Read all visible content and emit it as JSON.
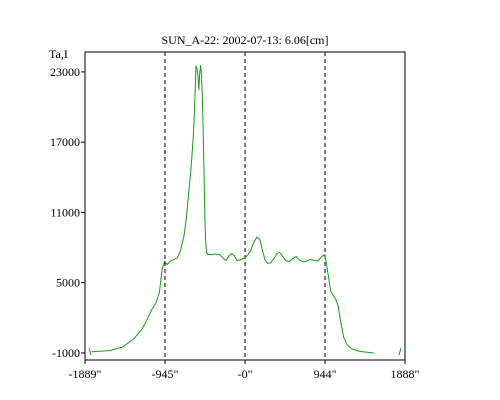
{
  "chart_data": {
    "type": "line",
    "title": "SUN_A-22: 2002-07-13: 6.06[cm]",
    "ylabel": "Ta,I",
    "xlabel": "",
    "xlim": [
      -1889,
      1888
    ],
    "ylim": [
      -1600,
      24700
    ],
    "grid": false,
    "x_ticks": [
      {
        "value": -1889,
        "label": "-1889\""
      },
      {
        "value": -945,
        "label": "-945\""
      },
      {
        "value": 0,
        "label": "-0\""
      },
      {
        "value": 944,
        "label": "944\""
      },
      {
        "value": 1888,
        "label": "1888\""
      }
    ],
    "y_ticks": [
      {
        "value": -1000,
        "label": "-1000"
      },
      {
        "value": 5000,
        "label": "5000"
      },
      {
        "value": 11000,
        "label": "11000"
      },
      {
        "value": 17000,
        "label": "17000"
      },
      {
        "value": 23000,
        "label": "23000"
      }
    ],
    "reference_lines_x": [
      -945,
      0,
      944
    ],
    "colors": {
      "series": "#1a9a1a",
      "axes": "#000000",
      "reference": "#000000"
    },
    "series": [
      {
        "points": [
          [
            -1810,
            -900
          ],
          [
            -1600,
            -800
          ],
          [
            -1450,
            -500
          ],
          [
            -1320,
            150
          ],
          [
            -1220,
            1000
          ],
          [
            -1160,
            1800
          ],
          [
            -1100,
            2700
          ],
          [
            -1050,
            3300
          ],
          [
            -1010,
            4200
          ],
          [
            -980,
            6100
          ],
          [
            -950,
            6850
          ],
          [
            -920,
            6550
          ],
          [
            -880,
            6850
          ],
          [
            -850,
            6950
          ],
          [
            -800,
            7100
          ],
          [
            -760,
            7800
          ],
          [
            -720,
            9000
          ],
          [
            -690,
            10700
          ],
          [
            -665,
            12700
          ],
          [
            -640,
            14500
          ],
          [
            -620,
            16500
          ],
          [
            -605,
            18300
          ],
          [
            -592,
            20800
          ],
          [
            -580,
            23500
          ],
          [
            -568,
            23300
          ],
          [
            -555,
            22600
          ],
          [
            -545,
            21500
          ],
          [
            -535,
            22900
          ],
          [
            -525,
            23550
          ],
          [
            -515,
            22800
          ],
          [
            -505,
            21000
          ],
          [
            -495,
            18200
          ],
          [
            -485,
            14500
          ],
          [
            -475,
            10800
          ],
          [
            -465,
            8600
          ],
          [
            -455,
            7600
          ],
          [
            -440,
            7400
          ],
          [
            -400,
            7400
          ],
          [
            -350,
            7450
          ],
          [
            -300,
            7400
          ],
          [
            -260,
            7100
          ],
          [
            -225,
            6900
          ],
          [
            -190,
            7300
          ],
          [
            -160,
            7500
          ],
          [
            -130,
            7350
          ],
          [
            -95,
            6900
          ],
          [
            -60,
            6950
          ],
          [
            -30,
            7050
          ],
          [
            0,
            7150
          ],
          [
            30,
            7350
          ],
          [
            65,
            7700
          ],
          [
            100,
            8400
          ],
          [
            140,
            8900
          ],
          [
            175,
            8700
          ],
          [
            205,
            7800
          ],
          [
            235,
            6950
          ],
          [
            265,
            6650
          ],
          [
            300,
            6700
          ],
          [
            340,
            7050
          ],
          [
            380,
            7500
          ],
          [
            410,
            7600
          ],
          [
            440,
            7300
          ],
          [
            480,
            6900
          ],
          [
            520,
            6800
          ],
          [
            560,
            7050
          ],
          [
            600,
            7250
          ],
          [
            640,
            6950
          ],
          [
            680,
            6800
          ],
          [
            720,
            6800
          ],
          [
            770,
            7000
          ],
          [
            820,
            6900
          ],
          [
            860,
            6850
          ],
          [
            900,
            7200
          ],
          [
            935,
            7400
          ],
          [
            955,
            6900
          ],
          [
            980,
            5700
          ],
          [
            1010,
            4300
          ],
          [
            1040,
            3900
          ],
          [
            1070,
            3600
          ],
          [
            1100,
            3000
          ],
          [
            1130,
            1600
          ],
          [
            1165,
            350
          ],
          [
            1205,
            -300
          ],
          [
            1260,
            -650
          ],
          [
            1340,
            -850
          ],
          [
            1520,
            -1000
          ]
        ]
      }
    ]
  }
}
